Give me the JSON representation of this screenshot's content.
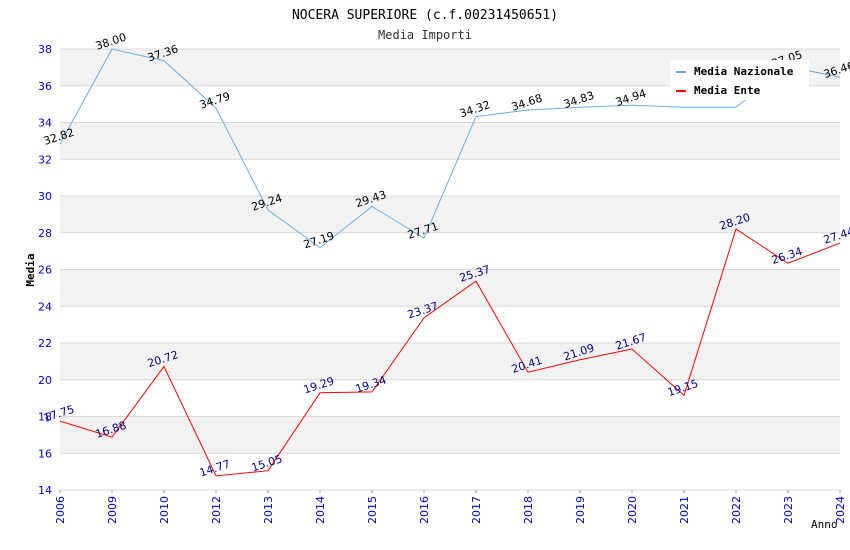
{
  "chart_data": {
    "type": "line",
    "title": "NOCERA SUPERIORE (c.f.00231450651)",
    "subtitle": "Media Importi",
    "xlabel": "Anno",
    "ylabel": "Media",
    "ylim": [
      14,
      38
    ],
    "yticks": [
      "14",
      "16",
      "18",
      "20",
      "22",
      "24",
      "26",
      "28",
      "30",
      "32",
      "34",
      "36",
      "38"
    ],
    "categories": [
      "2006",
      "2009",
      "2010",
      "2012",
      "2013",
      "2014",
      "2015",
      "2016",
      "2017",
      "2018",
      "2019",
      "2020",
      "2021",
      "2022",
      "2023",
      "2024"
    ],
    "legend_position": "top-right",
    "series": [
      {
        "name": "Media Nazionale",
        "color": "#6aaee8",
        "label_color": "#000000",
        "values": [
          32.82,
          38.0,
          37.36,
          34.79,
          29.24,
          27.19,
          29.43,
          27.71,
          34.32,
          34.68,
          34.83,
          34.94,
          34.83,
          34.83,
          37.05,
          36.46
        ],
        "labels": [
          "32.82",
          "38.00",
          "37.36",
          "34.79",
          "29.24",
          "27.19",
          "29.43",
          "27.71",
          "34.32",
          "34.68",
          "34.83",
          "34.94",
          "",
          "",
          "37.05",
          "36.46"
        ]
      },
      {
        "name": "Media Ente",
        "color": "#ff0000",
        "label_color": "#00008b",
        "values": [
          17.75,
          16.88,
          20.72,
          14.77,
          15.05,
          19.29,
          19.34,
          23.37,
          25.37,
          20.41,
          21.09,
          21.67,
          19.15,
          28.2,
          26.34,
          27.44
        ],
        "labels": [
          "17.75",
          "16.88",
          "20.72",
          "14.77",
          "15.05",
          "19.29",
          "19.34",
          "23.37",
          "25.37",
          "20.41",
          "21.09",
          "21.67",
          "19.15",
          "28.20",
          "26.34",
          "27.44"
        ]
      }
    ],
    "colors": {
      "tick_label": "#0000cc",
      "band": "#f2f2f2",
      "grid": "#d8d8d8"
    }
  }
}
